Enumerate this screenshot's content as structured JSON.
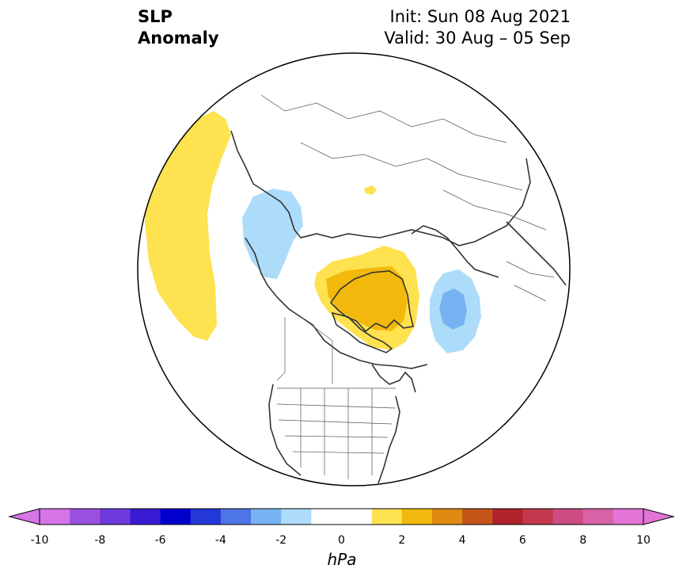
{
  "header": {
    "title_line1": "SLP",
    "title_line2": "Anomaly",
    "init_text": "Init: Sun 08 Aug 2021",
    "valid_text": "Valid: 30 Aug – 05 Sep"
  },
  "colorbar": {
    "unit": "hPa",
    "tick_labels": [
      "-10",
      "-8",
      "-6",
      "-4",
      "-2",
      "0",
      "2",
      "4",
      "6",
      "8",
      "10"
    ],
    "colors": [
      "#d575e8",
      "#9b50df",
      "#6e3adb",
      "#3a1ad3",
      "#0000cc",
      "#2438d8",
      "#4e75e6",
      "#77b3f2",
      "#addcfa",
      "#ffffff",
      "#ffffff",
      "#fee24f",
      "#f2b90c",
      "#df8a10",
      "#c65519",
      "#b0232a",
      "#c3384f",
      "#cc4c83",
      "#d863a6",
      "#e474d6"
    ]
  },
  "anomalies": [
    {
      "name": "positive anomaly west pacific",
      "level": "1-2 hPa",
      "color": "#fee24f"
    },
    {
      "name": "positive anomaly greenland outer",
      "level": "1-2 hPa",
      "color": "#fee24f"
    },
    {
      "name": "positive anomaly greenland core",
      "level": "2-3 hPa",
      "color": "#f2b90c"
    },
    {
      "name": "negative anomaly alaska",
      "level": "-1 to -2 hPa",
      "color": "#addcfa"
    },
    {
      "name": "negative anomaly north atlantic outer",
      "level": "-1 to -2 hPa",
      "color": "#addcfa"
    },
    {
      "name": "negative anomaly north atlantic core",
      "level": "-2 to -3 hPa",
      "color": "#77b3f2"
    }
  ]
}
